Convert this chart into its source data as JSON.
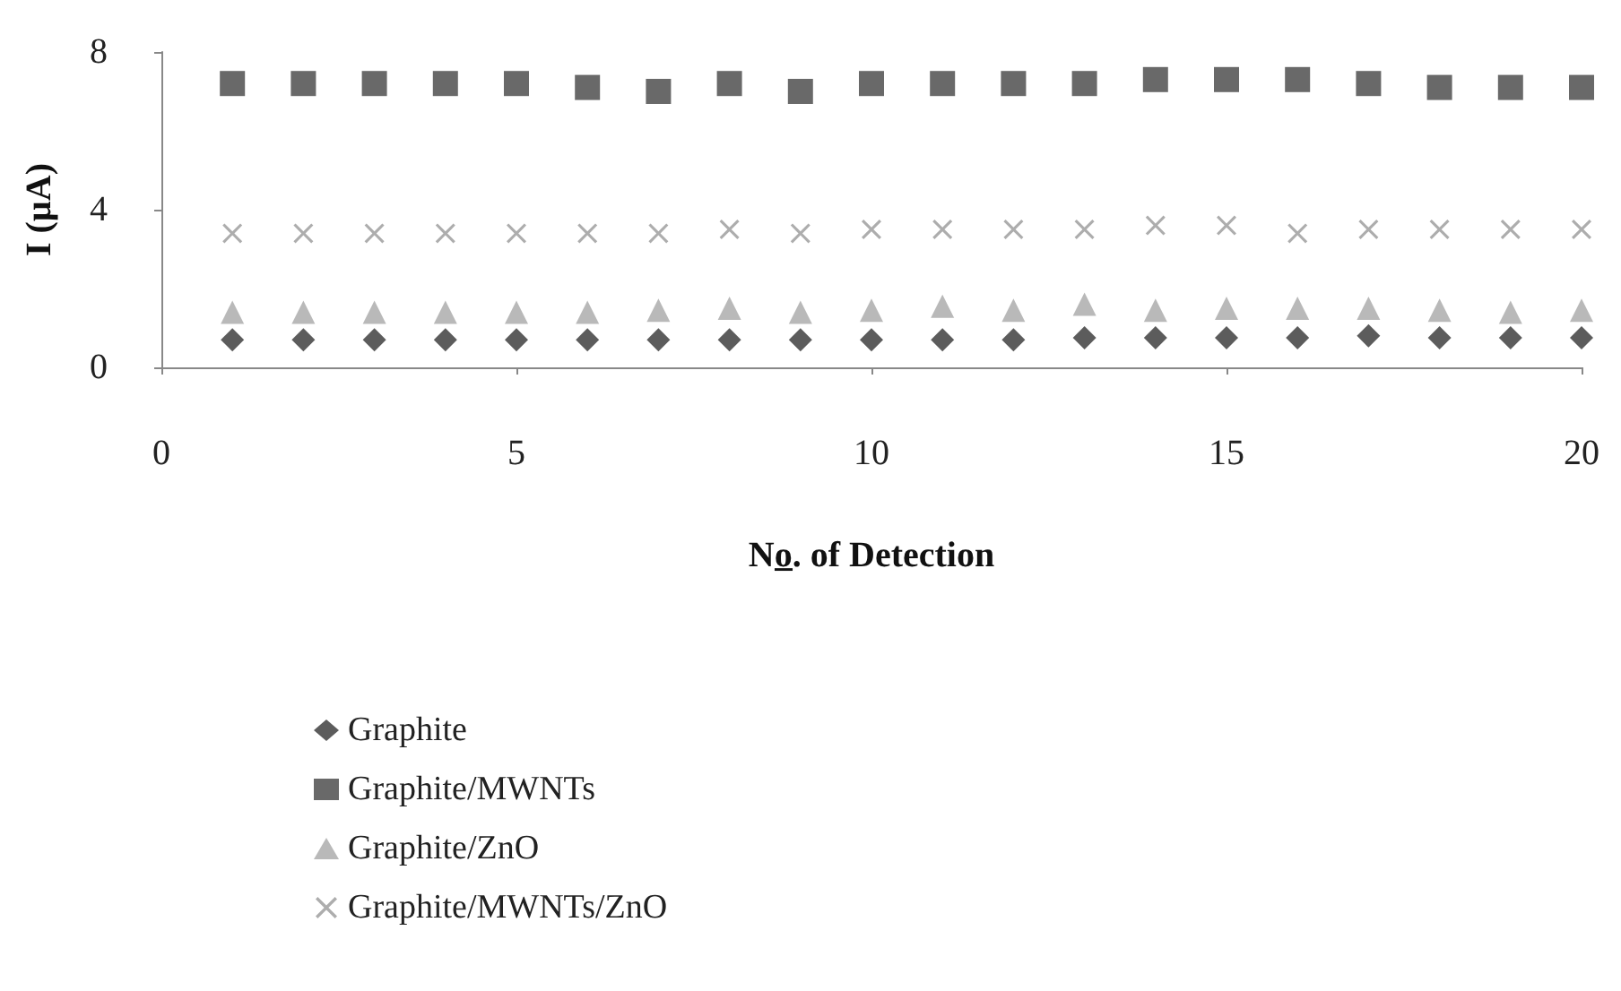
{
  "chart_data": {
    "type": "scatter",
    "xlabel": "No̲. of Detection",
    "ylabel": "I (µA)",
    "xlim": [
      0,
      20
    ],
    "xticks": [
      0,
      5,
      10,
      15,
      20
    ],
    "ylim": [
      0,
      8
    ],
    "yticks": [
      0,
      4,
      8
    ],
    "grid": false,
    "legend": "bottom",
    "x": [
      1,
      2,
      3,
      4,
      5,
      6,
      7,
      8,
      9,
      10,
      11,
      12,
      13,
      14,
      15,
      16,
      17,
      18,
      19,
      20
    ],
    "series": [
      {
        "name": "Graphite",
        "color": "#333333",
        "marker": "diamond",
        "values": [
          0.7,
          0.7,
          0.7,
          0.7,
          0.7,
          0.7,
          0.7,
          0.7,
          0.7,
          0.7,
          0.7,
          0.7,
          0.75,
          0.75,
          0.75,
          0.75,
          0.8,
          0.75,
          0.75,
          0.75
        ]
      },
      {
        "name": "Graphite/MWNTs",
        "color": "#444444",
        "marker": "square",
        "values": [
          7.2,
          7.2,
          7.2,
          7.2,
          7.2,
          7.1,
          7.0,
          7.2,
          7.0,
          7.2,
          7.2,
          7.2,
          7.2,
          7.3,
          7.3,
          7.3,
          7.2,
          7.1,
          7.1,
          7.1
        ]
      },
      {
        "name": "Graphite/ZnO",
        "color": "#a8a8a8",
        "marker": "triangle",
        "values": [
          1.4,
          1.4,
          1.4,
          1.4,
          1.4,
          1.4,
          1.45,
          1.5,
          1.4,
          1.45,
          1.55,
          1.45,
          1.6,
          1.45,
          1.5,
          1.5,
          1.5,
          1.45,
          1.4,
          1.45
        ]
      },
      {
        "name": "Graphite/MWNTs/ZnO",
        "color": "#999999",
        "marker": "cross",
        "values": [
          3.4,
          3.4,
          3.4,
          3.4,
          3.4,
          3.4,
          3.4,
          3.5,
          3.4,
          3.5,
          3.5,
          3.5,
          3.5,
          3.6,
          3.6,
          3.4,
          3.5,
          3.5,
          3.5,
          3.5
        ]
      }
    ]
  }
}
